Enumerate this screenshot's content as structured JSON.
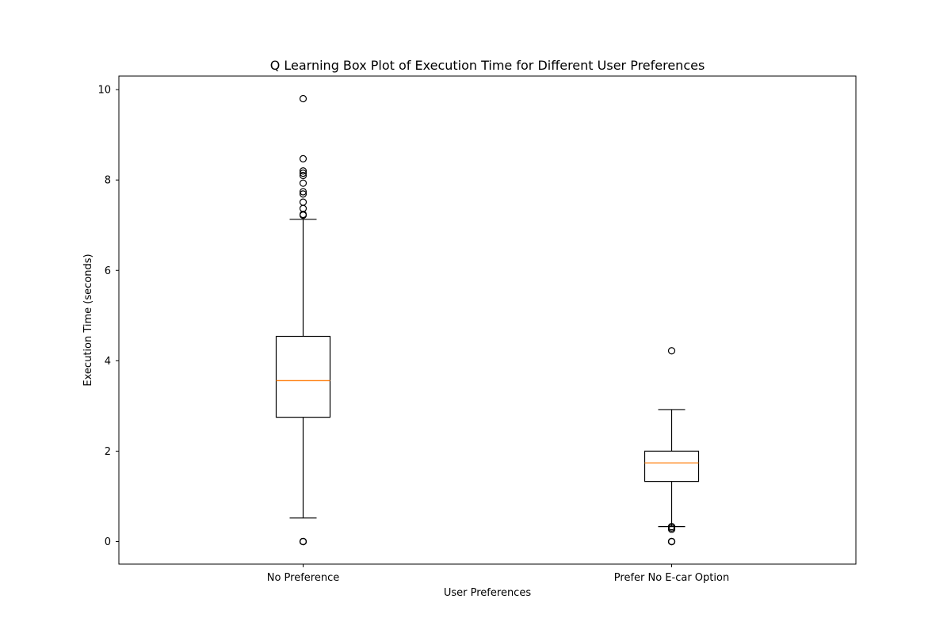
{
  "chart_data": {
    "type": "box",
    "title": "Q Learning Box Plot of Execution Time for Different User Preferences",
    "xlabel": "User Preferences",
    "ylabel": "Execution Time (seconds)",
    "ylim": [
      -0.5,
      10.3
    ],
    "yticks": [
      0,
      2,
      4,
      6,
      8,
      10
    ],
    "grid": false,
    "categories": [
      "No Preference",
      "Prefer No E-car Option"
    ],
    "boxes": [
      {
        "category": "No Preference",
        "whisker_low": 0.52,
        "q1": 2.75,
        "median": 3.56,
        "q3": 4.54,
        "whisker_high": 7.13,
        "outliers": [
          0.0,
          0.0,
          0.0,
          7.22,
          7.24,
          7.37,
          7.51,
          7.69,
          7.74,
          7.93,
          8.1,
          8.15,
          8.2,
          8.47,
          9.8
        ]
      },
      {
        "category": "Prefer No E-car Option",
        "whisker_low": 0.33,
        "q1": 1.33,
        "median": 1.74,
        "q3": 2.0,
        "whisker_high": 2.92,
        "outliers": [
          0.0,
          0.0,
          0.0,
          0.27,
          0.3,
          0.33,
          4.22
        ]
      }
    ],
    "colors": {
      "box": "#000000",
      "median": "#ff7f0e",
      "outlier_edge": "#000000",
      "background": "#ffffff"
    }
  }
}
